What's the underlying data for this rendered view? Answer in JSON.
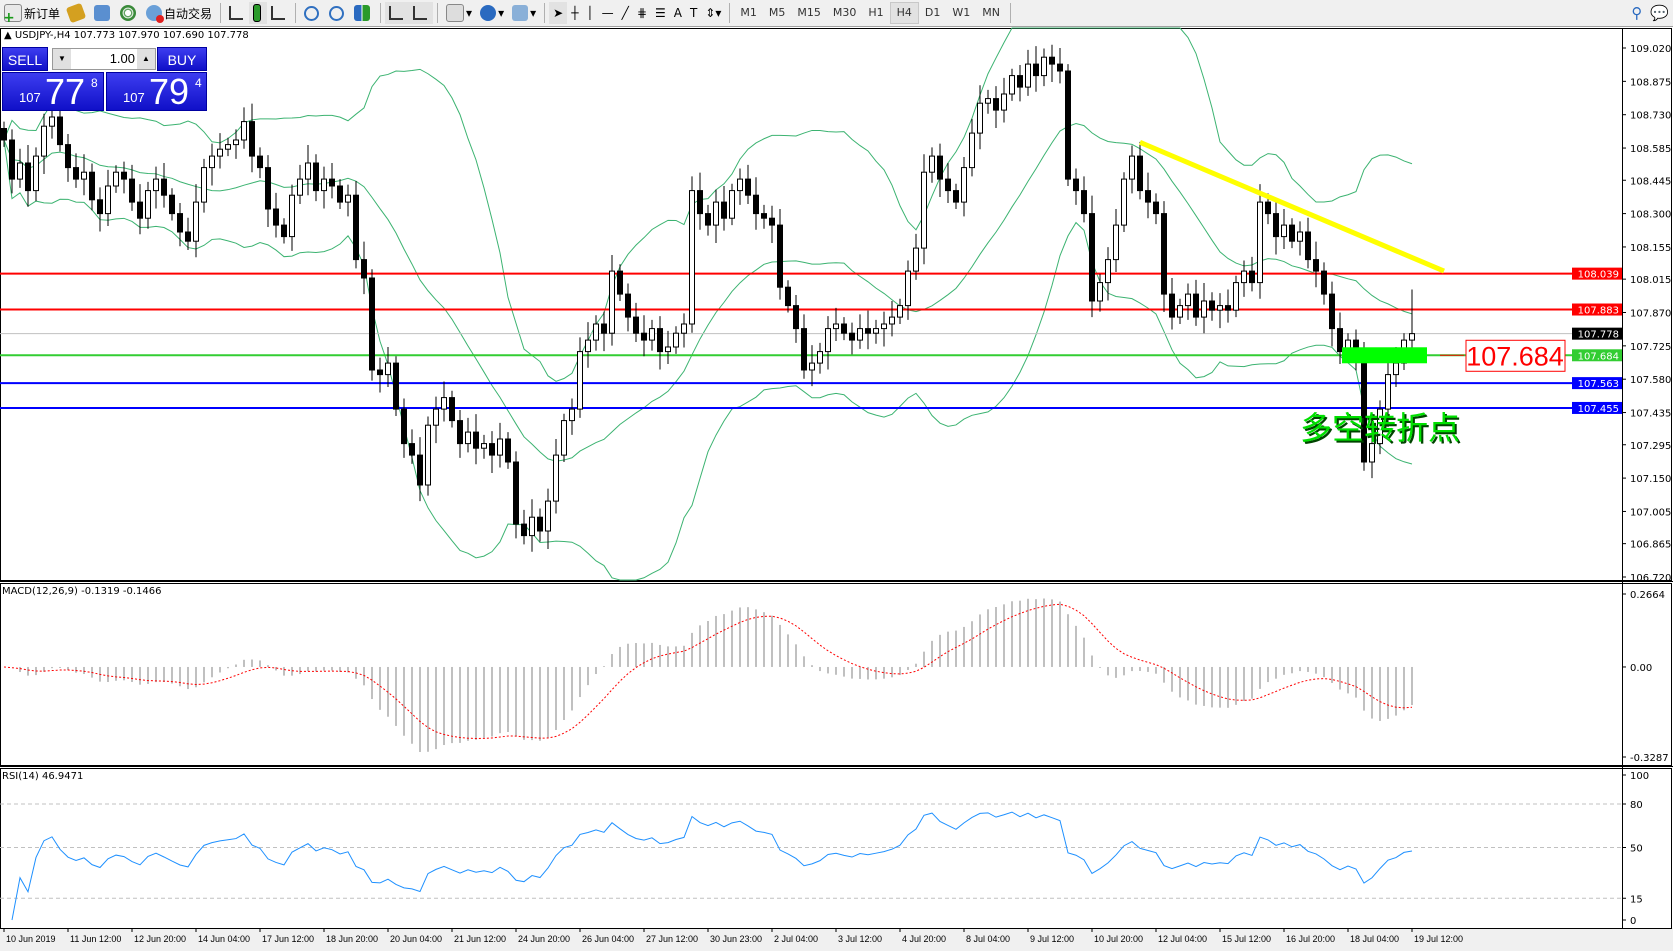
{
  "toolbar": {
    "new_order": "新订单",
    "auto_trading": "自动交易",
    "timeframes": [
      "M1",
      "M5",
      "M15",
      "M30",
      "H1",
      "H4",
      "D1",
      "W1",
      "MN"
    ],
    "active_timeframe": "H4"
  },
  "chart_info": "USDJPY-,H4  107.773 107.970 107.690 107.778",
  "trade_panel": {
    "sell_label": "SELL",
    "buy_label": "BUY",
    "lot": "1.00",
    "sell_big": "107",
    "sell_main": "77",
    "sell_sup": "8",
    "buy_big": "107",
    "buy_main": "79",
    "buy_sup": "4"
  },
  "annotation": {
    "label": "多空转折点",
    "level_box": "107.684"
  },
  "chart_data": {
    "type": "candlestick",
    "symbol": "USDJPY-",
    "timeframe": "H4",
    "ylim": [
      106.72,
      109.02
    ],
    "price_ticks": [
      "109.020",
      "108.875",
      "108.730",
      "108.585",
      "108.445",
      "108.300",
      "108.155",
      "108.015",
      "107.870",
      "107.725",
      "107.580",
      "107.435",
      "107.295",
      "107.150",
      "107.005",
      "106.865",
      "106.720"
    ],
    "time_labels": [
      "10 Jun 2019",
      "11 Jun 12:00",
      "12 Jun 20:00",
      "14 Jun 04:00",
      "17 Jun 12:00",
      "18 Jun 20:00",
      "20 Jun 04:00",
      "21 Jun 12:00",
      "24 Jun 20:00",
      "26 Jun 04:00",
      "27 Jun 12:00",
      "30 Jun 23:00",
      "2 Jul 04:00",
      "3 Jul 12:00",
      "4 Jul 20:00",
      "8 Jul 04:00",
      "9 Jul 12:00",
      "10 Jul 20:00",
      "12 Jul 04:00",
      "15 Jul 12:00",
      "16 Jul 20:00",
      "18 Jul 04:00",
      "19 Jul 12:00"
    ],
    "closes": [
      108.62,
      108.45,
      108.52,
      108.4,
      108.55,
      108.68,
      108.72,
      108.6,
      108.5,
      108.45,
      108.48,
      108.36,
      108.3,
      108.42,
      108.48,
      108.45,
      108.35,
      108.28,
      108.4,
      108.45,
      108.38,
      108.3,
      108.22,
      108.18,
      108.35,
      108.5,
      108.55,
      108.58,
      108.6,
      108.62,
      108.7,
      108.55,
      108.5,
      108.32,
      108.25,
      108.2,
      108.38,
      108.45,
      108.52,
      108.4,
      108.45,
      108.42,
      108.35,
      108.38,
      108.1,
      108.02,
      107.62,
      107.6,
      107.65,
      107.45,
      107.3,
      107.25,
      107.12,
      107.38,
      107.45,
      107.5,
      107.4,
      107.3,
      107.35,
      107.28,
      107.3,
      107.25,
      107.32,
      107.22,
      106.95,
      106.9,
      106.98,
      106.92,
      107.05,
      107.25,
      107.4,
      107.45,
      107.7,
      107.75,
      107.82,
      107.78,
      108.05,
      107.95,
      107.85,
      107.78,
      107.75,
      107.8,
      107.7,
      107.72,
      107.78,
      107.82,
      108.4,
      108.3,
      108.25,
      108.35,
      108.28,
      108.4,
      108.45,
      108.38,
      108.3,
      108.28,
      108.25,
      107.98,
      107.9,
      107.8,
      107.62,
      107.65,
      107.7,
      107.8,
      107.82,
      107.78,
      107.75,
      107.8,
      107.78,
      107.8,
      107.82,
      107.85,
      107.9,
      108.05,
      108.15,
      108.48,
      108.55,
      108.45,
      108.4,
      108.35,
      108.5,
      108.65,
      108.78,
      108.8,
      108.75,
      108.82,
      108.9,
      108.85,
      108.95,
      108.9,
      108.98,
      108.95,
      108.92,
      108.45,
      108.4,
      108.3,
      107.92,
      108.0,
      108.1,
      108.25,
      108.45,
      108.55,
      108.4,
      108.35,
      108.3,
      107.95,
      107.85,
      107.9,
      107.95,
      107.85,
      107.92,
      107.88,
      107.9,
      107.88,
      108.0,
      108.05,
      108.0,
      108.35,
      108.3,
      108.2,
      108.25,
      108.18,
      108.22,
      108.1,
      108.05,
      107.95,
      107.8,
      107.7,
      107.75,
      107.68,
      107.22,
      107.3,
      107.45,
      107.6,
      107.65,
      107.75,
      107.778
    ],
    "last_ohlc": {
      "open": 107.773,
      "high": 107.97,
      "low": 107.69,
      "close": 107.778
    },
    "horizontal_levels": [
      {
        "price": 108.039,
        "label": "108.039",
        "color": "#ff0000"
      },
      {
        "price": 107.883,
        "label": "107.883",
        "color": "#ff0000"
      },
      {
        "price": 107.778,
        "label": "107.778",
        "color": "#000000"
      },
      {
        "price": 107.684,
        "label": "107.684",
        "color": "#32cd32"
      },
      {
        "price": 107.563,
        "label": "107.563",
        "color": "#0000ff"
      },
      {
        "price": 107.455,
        "label": "107.455",
        "color": "#0000ff"
      }
    ],
    "trendline": {
      "color": "#ffff00",
      "from": {
        "bar": 142,
        "price": 108.61
      },
      "to": {
        "bar": 180,
        "price": 108.05
      }
    },
    "bollinger": {
      "period": 20,
      "deviation": 2,
      "color": "#3cb371"
    },
    "macd": {
      "title": "MACD(12,26,9) -0.1319 -0.1466",
      "ylim": [
        -0.3287,
        0.2664
      ],
      "ticks": [
        "0.2664",
        "0.00",
        "-0.3287"
      ],
      "histogram_color": "#c0c0c0",
      "signal_color": "#ff0000"
    },
    "rsi": {
      "title": "RSI(14) 46.9471",
      "ticks": [
        "100",
        "80",
        "50",
        "15",
        "0"
      ],
      "levels": [
        80,
        50,
        15
      ],
      "color": "#1e90ff"
    }
  }
}
